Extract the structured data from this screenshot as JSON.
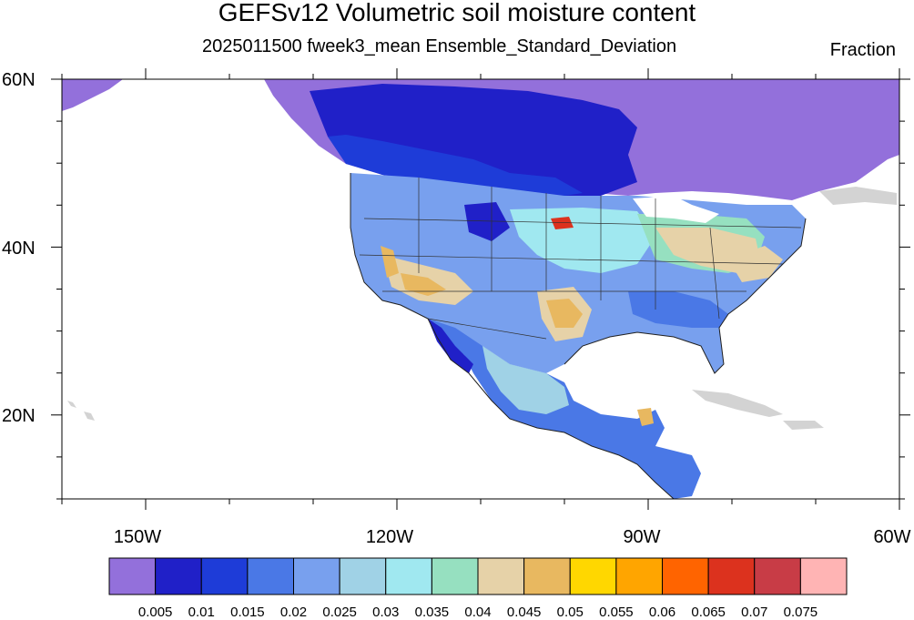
{
  "title": "GEFSv12 Volumetric soil moisture content",
  "subtitle": "2025011500 fweek3_mean Ensemble_Standard_Deviation",
  "units": "Fraction",
  "map": {
    "lon_range": [
      -160,
      -60
    ],
    "lat_range": [
      10,
      60
    ],
    "lat_labels": [
      "60N",
      "40N",
      "20N"
    ],
    "lon_labels": [
      "150W",
      "120W",
      "90W",
      "60W"
    ],
    "land_color": "#d3d3d3",
    "ocean_color": "#ffffff"
  },
  "colorbar": {
    "colors": [
      "#9370db",
      "#2020c8",
      "#1e3cd8",
      "#4a78e6",
      "#78a0ee",
      "#a0d2e6",
      "#a0e8f0",
      "#96e0c0",
      "#e6d2a8",
      "#e8b860",
      "#ffd700",
      "#ffa500",
      "#ff6400",
      "#dc321e",
      "#c83c46",
      "#ffb4b4"
    ],
    "labels": [
      "0.005",
      "0.01",
      "0.015",
      "0.02",
      "0.025",
      "0.03",
      "0.035",
      "0.04",
      "0.045",
      "0.05",
      "0.055",
      "0.06",
      "0.065",
      "0.07",
      "0.075"
    ]
  }
}
